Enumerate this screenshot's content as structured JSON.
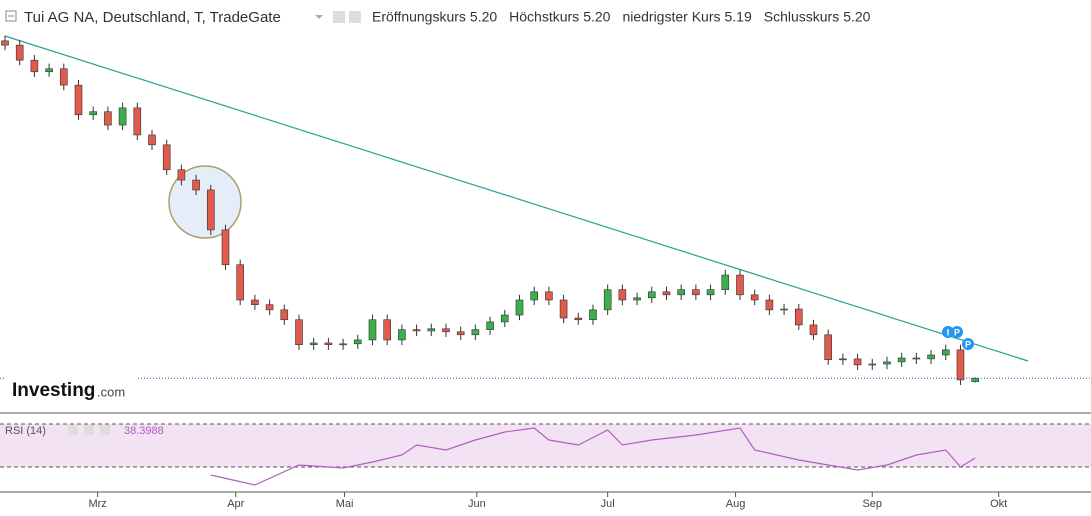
{
  "chart_data": {
    "type": "candlestick",
    "title": "Tui AG NA, Deutschland, T, TradeGate",
    "stats": [
      {
        "name": "Eröffnungskurs",
        "value": {
          "value": 5.2,
          "label": "5.20"
        }
      },
      {
        "name": "Höchstkurs",
        "value": {
          "value": 5.2,
          "label": "5.20"
        }
      },
      {
        "name": "niedrigster Kurs",
        "value": {
          "value": 5.19,
          "label": "5.19"
        }
      },
      {
        "name": "Schlusskurs",
        "value": {
          "value": 5.2,
          "label": "5.20"
        }
      }
    ],
    "up_color": "#3cae4a",
    "down_color": "#e05a4e",
    "candles": [
      [
        13.05,
        13.17,
        12.83,
        12.95
      ],
      [
        12.95,
        13.07,
        12.48,
        12.6
      ],
      [
        12.6,
        12.72,
        12.21,
        12.33
      ],
      [
        12.33,
        12.52,
        12.21,
        12.4
      ],
      [
        12.4,
        12.52,
        11.9,
        12.02
      ],
      [
        12.02,
        12.14,
        11.21,
        11.33
      ],
      [
        11.33,
        11.52,
        11.21,
        11.4
      ],
      [
        11.4,
        11.52,
        10.97,
        11.09
      ],
      [
        11.09,
        11.61,
        10.97,
        11.49
      ],
      [
        11.49,
        11.61,
        10.74,
        10.86
      ],
      [
        10.86,
        10.98,
        10.51,
        10.63
      ],
      [
        10.63,
        10.75,
        9.93,
        10.05
      ],
      [
        10.05,
        10.17,
        9.69,
        9.81
      ],
      [
        9.81,
        9.93,
        9.46,
        9.58
      ],
      [
        9.58,
        9.7,
        8.53,
        8.65
      ],
      [
        8.65,
        8.77,
        7.72,
        7.84
      ],
      [
        7.84,
        7.96,
        6.9,
        7.02
      ],
      [
        7.02,
        7.14,
        6.79,
        6.91
      ],
      [
        6.91,
        7.03,
        6.67,
        6.79
      ],
      [
        6.79,
        6.91,
        6.44,
        6.56
      ],
      [
        6.56,
        6.68,
        5.86,
        5.98
      ],
      [
        5.98,
        6.14,
        5.86,
        6.02
      ],
      [
        6.02,
        6.14,
        5.86,
        5.98
      ],
      [
        5.98,
        6.12,
        5.86,
        6.0
      ],
      [
        6.0,
        6.21,
        5.88,
        6.09
      ],
      [
        6.09,
        6.68,
        5.97,
        6.56
      ],
      [
        6.56,
        6.68,
        5.97,
        6.09
      ],
      [
        6.09,
        6.45,
        5.97,
        6.33
      ],
      [
        6.33,
        6.45,
        6.18,
        6.3
      ],
      [
        6.3,
        6.47,
        6.18,
        6.35
      ],
      [
        6.35,
        6.47,
        6.16,
        6.28
      ],
      [
        6.28,
        6.4,
        6.09,
        6.21
      ],
      [
        6.21,
        6.45,
        6.09,
        6.33
      ],
      [
        6.33,
        6.63,
        6.21,
        6.51
      ],
      [
        6.51,
        6.79,
        6.39,
        6.67
      ],
      [
        6.67,
        7.14,
        6.55,
        7.02
      ],
      [
        7.02,
        7.33,
        6.9,
        7.21
      ],
      [
        7.21,
        7.33,
        6.9,
        7.02
      ],
      [
        7.02,
        7.14,
        6.48,
        6.6
      ],
      [
        6.6,
        6.72,
        6.44,
        6.56
      ],
      [
        6.56,
        6.91,
        6.44,
        6.79
      ],
      [
        6.79,
        7.38,
        6.67,
        7.26
      ],
      [
        7.26,
        7.38,
        6.9,
        7.02
      ],
      [
        7.02,
        7.19,
        6.9,
        7.07
      ],
      [
        7.07,
        7.33,
        6.95,
        7.21
      ],
      [
        7.21,
        7.33,
        7.02,
        7.14
      ],
      [
        7.14,
        7.38,
        7.02,
        7.26
      ],
      [
        7.26,
        7.38,
        7.02,
        7.14
      ],
      [
        7.14,
        7.38,
        7.02,
        7.26
      ],
      [
        7.26,
        7.72,
        7.14,
        7.6
      ],
      [
        7.6,
        7.72,
        7.02,
        7.14
      ],
      [
        7.14,
        7.26,
        6.9,
        7.02
      ],
      [
        7.02,
        7.14,
        6.67,
        6.79
      ],
      [
        6.79,
        6.93,
        6.67,
        6.81
      ],
      [
        6.81,
        6.93,
        6.32,
        6.44
      ],
      [
        6.44,
        6.56,
        6.09,
        6.21
      ],
      [
        6.21,
        6.33,
        5.51,
        5.63
      ],
      [
        5.63,
        5.77,
        5.51,
        5.65
      ],
      [
        5.65,
        5.77,
        5.39,
        5.51
      ],
      [
        5.51,
        5.65,
        5.39,
        5.53
      ],
      [
        5.53,
        5.7,
        5.41,
        5.58
      ],
      [
        5.58,
        5.79,
        5.46,
        5.67
      ],
      [
        5.67,
        5.79,
        5.53,
        5.65
      ],
      [
        5.65,
        5.86,
        5.53,
        5.74
      ],
      [
        5.74,
        5.98,
        5.62,
        5.86
      ],
      [
        5.86,
        5.98,
        5.04,
        5.16
      ],
      [
        5.12,
        5.22,
        5.1,
        5.2
      ]
    ],
    "ylim": [
      4.46,
      14
    ],
    "xlim": [
      -0.34,
      73.88
    ],
    "xticks": [
      {
        "value": 6.3,
        "label": "Mrz"
      },
      {
        "value": 15.7,
        "label": "Apr"
      },
      {
        "value": 23.1,
        "label": "Mai"
      },
      {
        "value": 32.1,
        "label": "Jun"
      },
      {
        "value": 41,
        "label": "Jul"
      },
      {
        "value": 49.7,
        "label": "Aug"
      },
      {
        "value": 59,
        "label": "Sep"
      },
      {
        "value": 67.6,
        "label": "Okt"
      }
    ],
    "markers": [
      "I",
      "P",
      "P"
    ],
    "logo": {
      "name": "Investing",
      "suffix": ".com"
    },
    "rsi": {
      "name": "RSI (14)",
      "current": 38.3988,
      "color": "#b060c0",
      "x": [
        14,
        17,
        20,
        23,
        25,
        27,
        28,
        30,
        32,
        34,
        36,
        37,
        39,
        41,
        42,
        44,
        47,
        50,
        51,
        54,
        56,
        58,
        60,
        62,
        64,
        65,
        66
      ],
      "values": [
        22.6,
        13.3,
        31.9,
        29.1,
        34.7,
        41.2,
        50.5,
        45.8,
        55.1,
        62.6,
        66.3,
        55.1,
        50.5,
        64.4,
        50.5,
        55.1,
        59.8,
        66.3,
        45.8,
        36.5,
        31.9,
        27.2,
        31.9,
        41.2,
        45.8,
        30,
        38.4
      ],
      "ylim": [
        8,
        78
      ],
      "levels": [
        30,
        70
      ]
    }
  }
}
